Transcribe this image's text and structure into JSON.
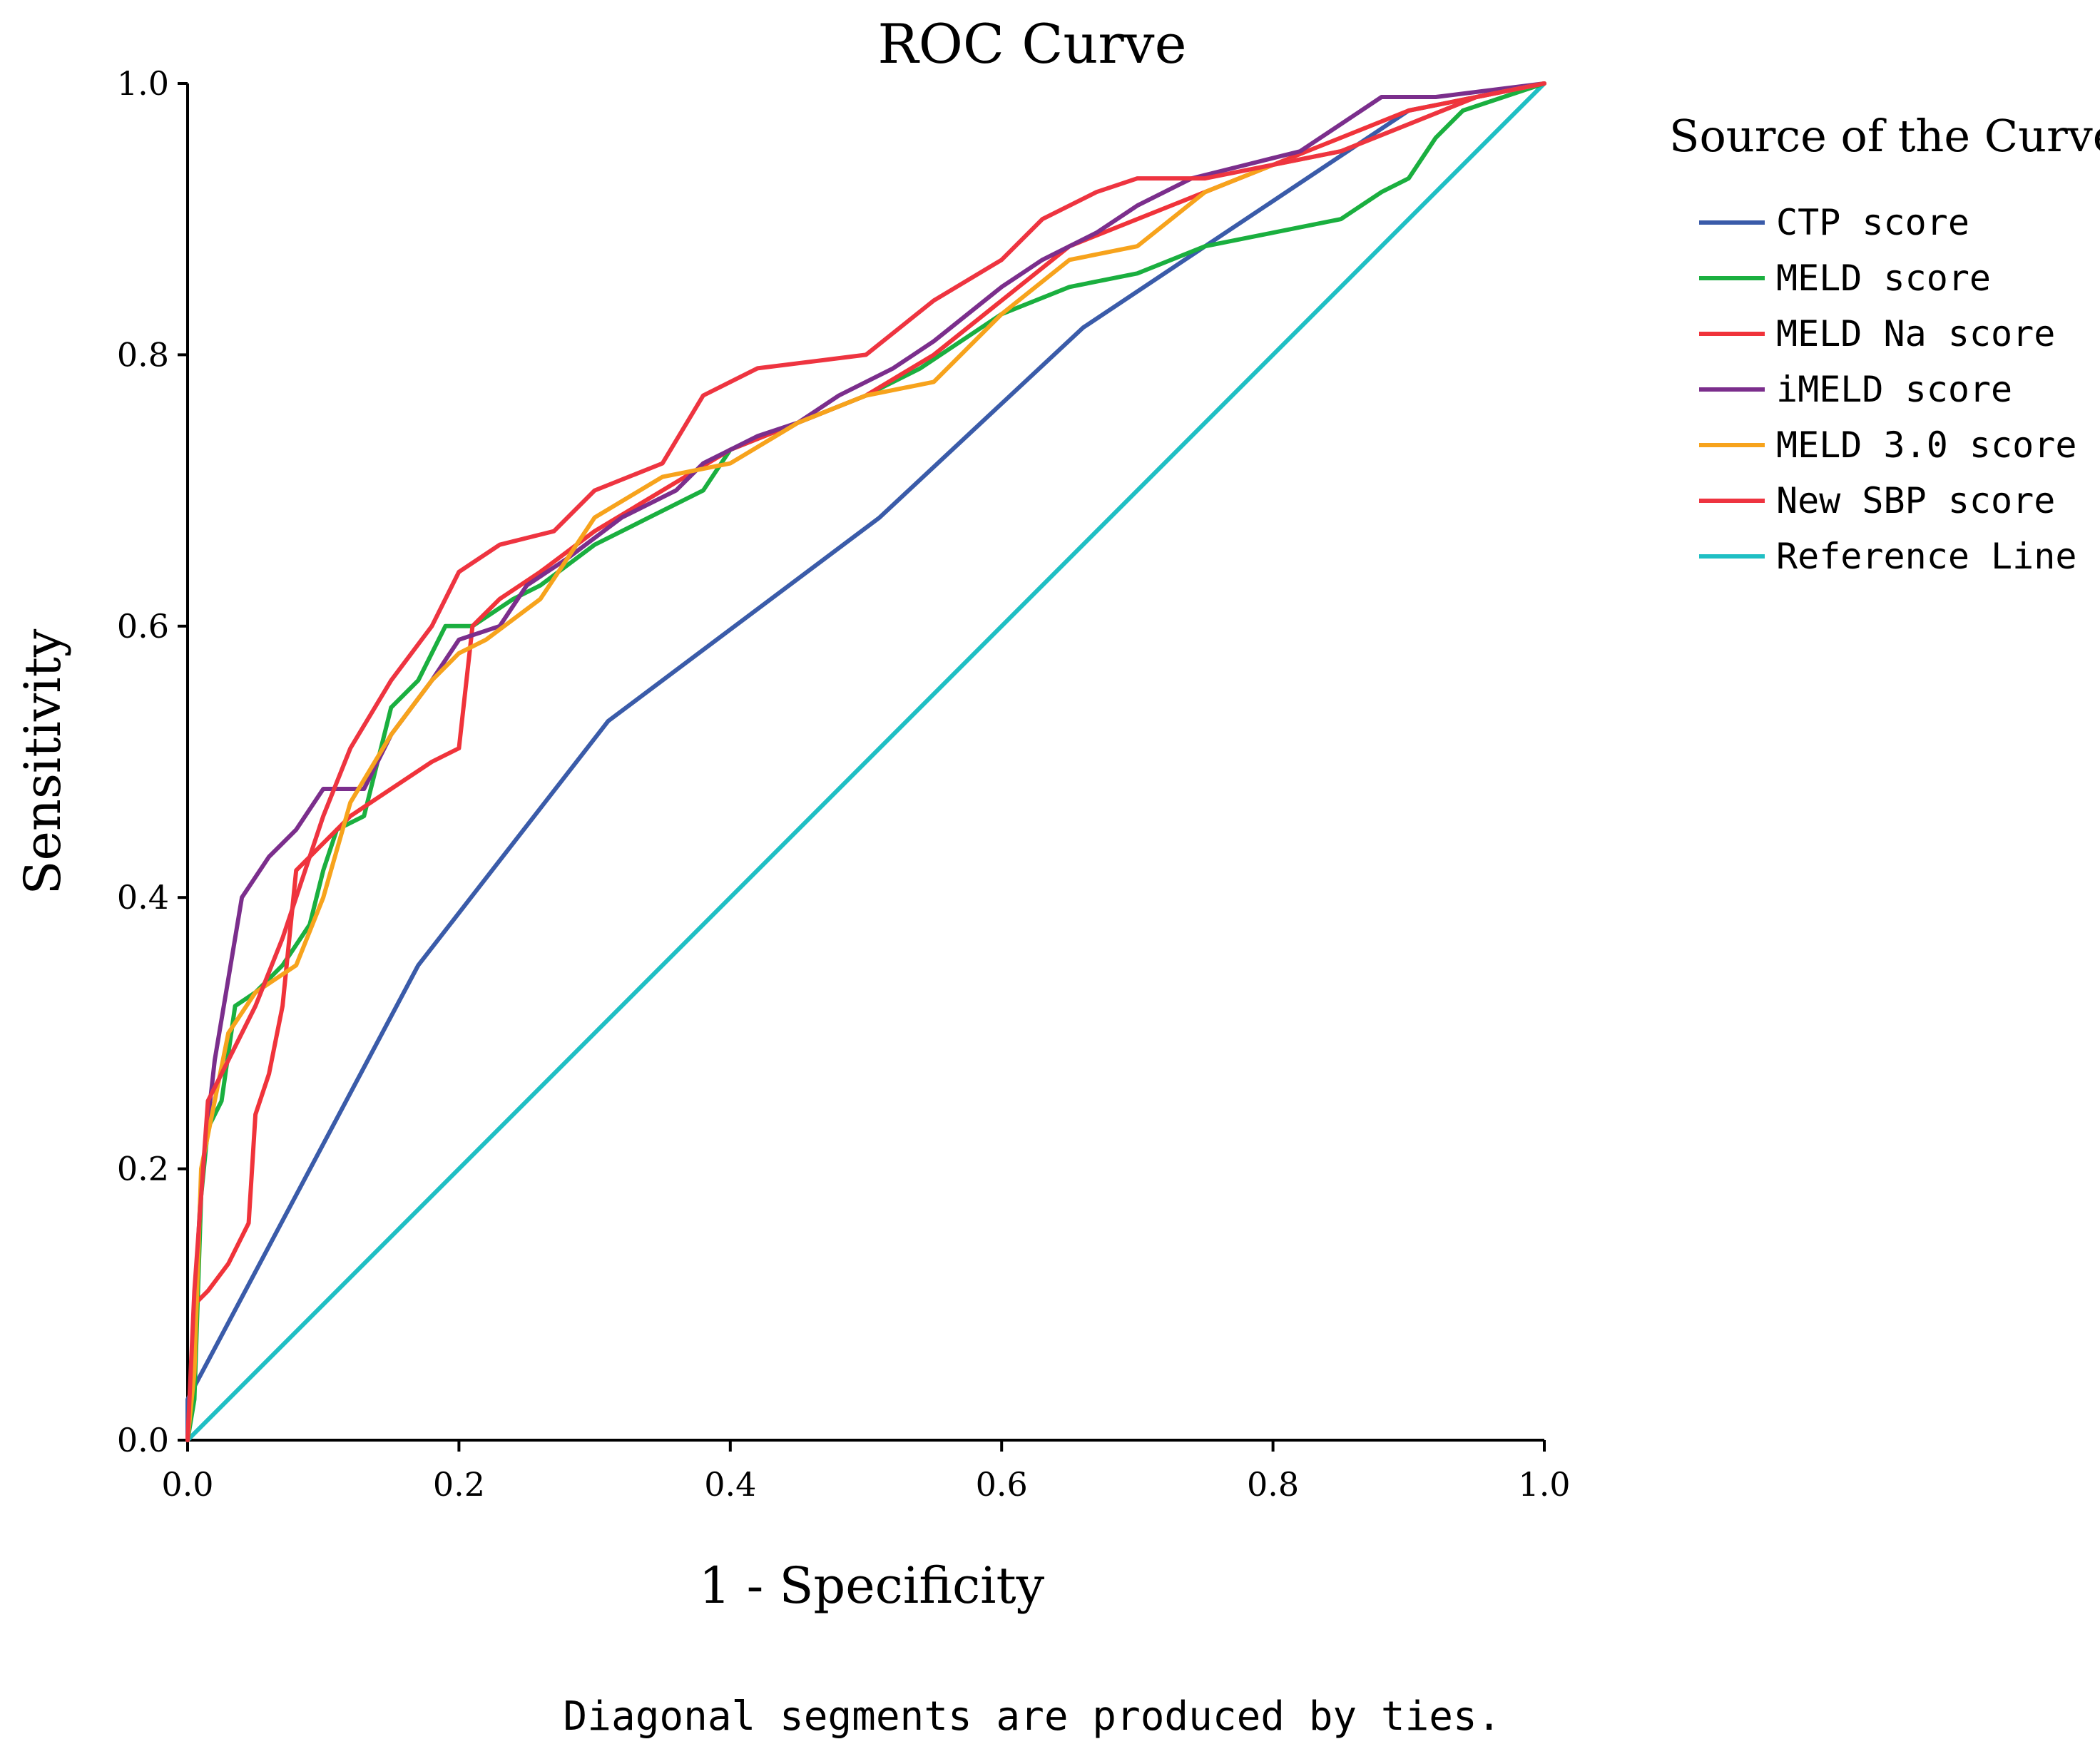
{
  "chart_data": {
    "type": "line",
    "title": "ROC Curve",
    "xlabel": "1 - Specificity",
    "ylabel": "Sensitivity",
    "xlim": [
      0,
      1
    ],
    "ylim": [
      0,
      1
    ],
    "xticks": [
      "0.0",
      "0.2",
      "0.4",
      "0.6",
      "0.8",
      "1.0"
    ],
    "yticks": [
      "0.0",
      "0.2",
      "0.4",
      "0.6",
      "0.8",
      "1.0"
    ],
    "grid": false,
    "legend_title": "Source of the Curve",
    "legend_position": "right",
    "footnote": "Diagonal segments are produced by ties.",
    "series": [
      {
        "name": "CTP score",
        "color": "#3a5ba9",
        "points": [
          [
            0,
            0
          ],
          [
            0,
            0.03
          ],
          [
            0.17,
            0.35
          ],
          [
            0.31,
            0.53
          ],
          [
            0.51,
            0.68
          ],
          [
            0.66,
            0.82
          ],
          [
            0.9,
            0.98
          ],
          [
            1,
            1
          ]
        ]
      },
      {
        "name": "MELD score",
        "color": "#1aaf3f",
        "points": [
          [
            0,
            0
          ],
          [
            0.005,
            0.03
          ],
          [
            0.01,
            0.18
          ],
          [
            0.015,
            0.23
          ],
          [
            0.025,
            0.25
          ],
          [
            0.035,
            0.32
          ],
          [
            0.05,
            0.33
          ],
          [
            0.07,
            0.35
          ],
          [
            0.09,
            0.38
          ],
          [
            0.1,
            0.42
          ],
          [
            0.11,
            0.45
          ],
          [
            0.13,
            0.46
          ],
          [
            0.15,
            0.54
          ],
          [
            0.17,
            0.56
          ],
          [
            0.19,
            0.6
          ],
          [
            0.21,
            0.6
          ],
          [
            0.24,
            0.62
          ],
          [
            0.26,
            0.63
          ],
          [
            0.3,
            0.66
          ],
          [
            0.34,
            0.68
          ],
          [
            0.38,
            0.7
          ],
          [
            0.4,
            0.73
          ],
          [
            0.45,
            0.75
          ],
          [
            0.5,
            0.77
          ],
          [
            0.54,
            0.79
          ],
          [
            0.6,
            0.83
          ],
          [
            0.65,
            0.85
          ],
          [
            0.7,
            0.86
          ],
          [
            0.75,
            0.88
          ],
          [
            0.8,
            0.89
          ],
          [
            0.85,
            0.9
          ],
          [
            0.88,
            0.92
          ],
          [
            0.9,
            0.93
          ],
          [
            0.92,
            0.96
          ],
          [
            0.94,
            0.98
          ],
          [
            0.97,
            0.99
          ],
          [
            1,
            1
          ]
        ]
      },
      {
        "name": "MELD Na score",
        "color": "#f0333a",
        "points": [
          [
            0,
            0
          ],
          [
            0.005,
            0.1
          ],
          [
            0.015,
            0.11
          ],
          [
            0.03,
            0.13
          ],
          [
            0.045,
            0.16
          ],
          [
            0.05,
            0.24
          ],
          [
            0.06,
            0.27
          ],
          [
            0.07,
            0.32
          ],
          [
            0.08,
            0.42
          ],
          [
            0.1,
            0.44
          ],
          [
            0.12,
            0.46
          ],
          [
            0.15,
            0.48
          ],
          [
            0.18,
            0.5
          ],
          [
            0.2,
            0.51
          ],
          [
            0.21,
            0.6
          ],
          [
            0.23,
            0.62
          ],
          [
            0.26,
            0.64
          ],
          [
            0.3,
            0.67
          ],
          [
            0.35,
            0.7
          ],
          [
            0.4,
            0.73
          ],
          [
            0.45,
            0.75
          ],
          [
            0.5,
            0.77
          ],
          [
            0.55,
            0.8
          ],
          [
            0.6,
            0.84
          ],
          [
            0.65,
            0.88
          ],
          [
            0.7,
            0.9
          ],
          [
            0.75,
            0.92
          ],
          [
            0.8,
            0.94
          ],
          [
            0.85,
            0.96
          ],
          [
            0.9,
            0.98
          ],
          [
            0.95,
            0.99
          ],
          [
            1,
            1
          ]
        ]
      },
      {
        "name": "iMELD score",
        "color": "#7b2e8c",
        "points": [
          [
            0,
            0
          ],
          [
            0.005,
            0.09
          ],
          [
            0.01,
            0.19
          ],
          [
            0.02,
            0.28
          ],
          [
            0.03,
            0.34
          ],
          [
            0.04,
            0.4
          ],
          [
            0.06,
            0.43
          ],
          [
            0.08,
            0.45
          ],
          [
            0.1,
            0.48
          ],
          [
            0.13,
            0.48
          ],
          [
            0.15,
            0.52
          ],
          [
            0.18,
            0.56
          ],
          [
            0.2,
            0.59
          ],
          [
            0.23,
            0.6
          ],
          [
            0.25,
            0.63
          ],
          [
            0.28,
            0.65
          ],
          [
            0.32,
            0.68
          ],
          [
            0.36,
            0.7
          ],
          [
            0.38,
            0.72
          ],
          [
            0.42,
            0.74
          ],
          [
            0.45,
            0.75
          ],
          [
            0.48,
            0.77
          ],
          [
            0.52,
            0.79
          ],
          [
            0.55,
            0.81
          ],
          [
            0.6,
            0.85
          ],
          [
            0.63,
            0.87
          ],
          [
            0.67,
            0.89
          ],
          [
            0.7,
            0.91
          ],
          [
            0.74,
            0.93
          ],
          [
            0.78,
            0.94
          ],
          [
            0.82,
            0.95
          ],
          [
            0.85,
            0.97
          ],
          [
            0.88,
            0.99
          ],
          [
            0.92,
            0.99
          ],
          [
            1,
            1
          ]
        ]
      },
      {
        "name": "MELD 3.0 score",
        "color": "#f7a31c",
        "points": [
          [
            0,
            0
          ],
          [
            0.005,
            0.05
          ],
          [
            0.01,
            0.2
          ],
          [
            0.02,
            0.25
          ],
          [
            0.03,
            0.3
          ],
          [
            0.05,
            0.33
          ],
          [
            0.08,
            0.35
          ],
          [
            0.1,
            0.4
          ],
          [
            0.12,
            0.47
          ],
          [
            0.15,
            0.52
          ],
          [
            0.18,
            0.56
          ],
          [
            0.2,
            0.58
          ],
          [
            0.22,
            0.59
          ],
          [
            0.26,
            0.62
          ],
          [
            0.3,
            0.68
          ],
          [
            0.35,
            0.71
          ],
          [
            0.4,
            0.72
          ],
          [
            0.45,
            0.75
          ],
          [
            0.5,
            0.77
          ],
          [
            0.55,
            0.78
          ],
          [
            0.6,
            0.83
          ],
          [
            0.65,
            0.87
          ],
          [
            0.7,
            0.88
          ],
          [
            0.75,
            0.92
          ],
          [
            0.8,
            0.94
          ],
          [
            0.85,
            0.95
          ],
          [
            0.9,
            0.97
          ],
          [
            0.95,
            0.99
          ],
          [
            1,
            1
          ]
        ]
      },
      {
        "name": "New SBP score",
        "color": "#ee3440",
        "points": [
          [
            0,
            0
          ],
          [
            0.005,
            0.11
          ],
          [
            0.015,
            0.25
          ],
          [
            0.03,
            0.28
          ],
          [
            0.05,
            0.32
          ],
          [
            0.07,
            0.37
          ],
          [
            0.09,
            0.43
          ],
          [
            0.1,
            0.46
          ],
          [
            0.12,
            0.51
          ],
          [
            0.15,
            0.56
          ],
          [
            0.18,
            0.6
          ],
          [
            0.2,
            0.64
          ],
          [
            0.23,
            0.66
          ],
          [
            0.27,
            0.67
          ],
          [
            0.3,
            0.7
          ],
          [
            0.35,
            0.72
          ],
          [
            0.38,
            0.77
          ],
          [
            0.42,
            0.79
          ],
          [
            0.5,
            0.8
          ],
          [
            0.55,
            0.84
          ],
          [
            0.6,
            0.87
          ],
          [
            0.63,
            0.9
          ],
          [
            0.67,
            0.92
          ],
          [
            0.7,
            0.93
          ],
          [
            0.75,
            0.93
          ],
          [
            0.8,
            0.94
          ],
          [
            0.85,
            0.95
          ],
          [
            0.9,
            0.97
          ],
          [
            0.95,
            0.99
          ],
          [
            1,
            1
          ]
        ]
      },
      {
        "name": "Reference Line",
        "color": "#1fbfc4",
        "points": [
          [
            0,
            0
          ],
          [
            1,
            1
          ]
        ]
      }
    ]
  }
}
